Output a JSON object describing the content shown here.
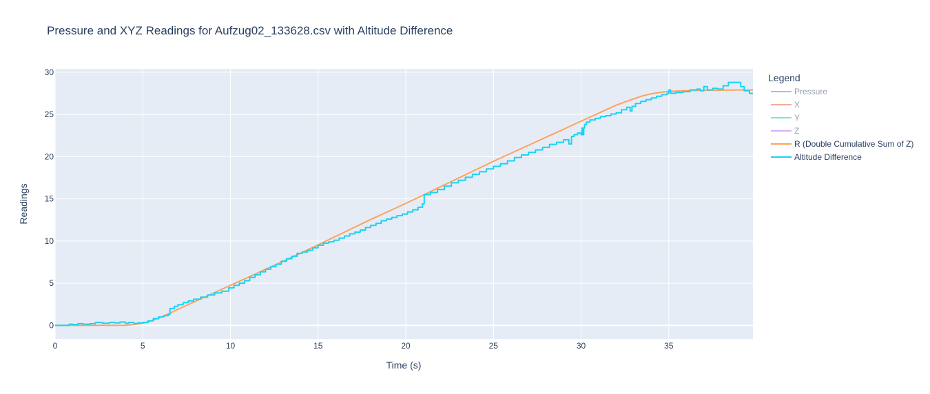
{
  "chart_data": {
    "type": "line",
    "title": "Pressure and XYZ Readings for Aufzug02_133628.csv with Altitude Difference",
    "xlabel": "Time (s)",
    "ylabel": "Readings",
    "xlim": [
      0,
      39.8
    ],
    "ylim": [
      -1.6,
      30.4
    ],
    "x_ticks": [
      0,
      5,
      10,
      15,
      20,
      25,
      30,
      35
    ],
    "y_ticks": [
      0,
      5,
      10,
      15,
      20,
      25,
      30
    ],
    "grid": true,
    "plot_background": "#e5ecf6",
    "legend": {
      "title": "Legend",
      "placement": "right"
    },
    "series": [
      {
        "name": "Pressure",
        "color": "#636efa",
        "visible": false,
        "x": [],
        "y": []
      },
      {
        "name": "X",
        "color": "#ef553b",
        "visible": false,
        "x": [],
        "y": []
      },
      {
        "name": "Y",
        "color": "#00cc96",
        "visible": false,
        "x": [],
        "y": []
      },
      {
        "name": "Z",
        "color": "#ab63fa",
        "visible": false,
        "x": [],
        "y": []
      },
      {
        "name": "R (Double Cumulative Sum of Z)",
        "color": "#ffa15a",
        "visible": true,
        "shape": "linear",
        "x": [
          0,
          2,
          4,
          4.5,
          5,
          5.5,
          6,
          6.5,
          7,
          8,
          9,
          10,
          11,
          12,
          13,
          14,
          15,
          16,
          17,
          18,
          19,
          20,
          21,
          22,
          23,
          24,
          25,
          26,
          27,
          28,
          29,
          30,
          31,
          32,
          33,
          33.5,
          34,
          34.5,
          35,
          35.5,
          36,
          37,
          38,
          39,
          39.8
        ],
        "y": [
          0,
          0,
          0.02,
          0.1,
          0.25,
          0.55,
          0.95,
          1.4,
          1.9,
          2.85,
          3.8,
          4.75,
          5.7,
          6.65,
          7.6,
          8.55,
          9.55,
          10.55,
          11.55,
          12.55,
          13.5,
          14.45,
          15.45,
          16.45,
          17.45,
          18.45,
          19.45,
          20.4,
          21.35,
          22.3,
          23.25,
          24.2,
          25.15,
          26.1,
          26.85,
          27.2,
          27.45,
          27.62,
          27.72,
          27.78,
          27.82,
          27.86,
          27.88,
          27.9,
          27.9
        ]
      },
      {
        "name": "Altitude Difference",
        "color": "#19d3f3",
        "visible": true,
        "shape": "hv",
        "x": [
          0,
          0.8,
          1,
          1.3,
          1.6,
          2,
          2.3,
          2.7,
          3.1,
          3.4,
          3.7,
          4,
          4.2,
          4.5,
          4.7,
          5,
          5.3,
          5.6,
          5.9,
          6.2,
          6.45,
          6.55,
          6.8,
          7,
          7.3,
          7.6,
          7.9,
          8.3,
          8.7,
          9.1,
          9.5,
          9.9,
          10.2,
          10.5,
          10.8,
          11.1,
          11.4,
          11.7,
          12,
          12.3,
          12.6,
          12.9,
          13.2,
          13.5,
          13.8,
          14.1,
          14.4,
          14.7,
          15,
          15.3,
          15.6,
          15.9,
          16.2,
          16.5,
          16.8,
          17.1,
          17.4,
          17.7,
          18,
          18.3,
          18.6,
          18.9,
          19.2,
          19.5,
          19.8,
          20.1,
          20.4,
          20.7,
          20.95,
          21.05,
          21.4,
          21.8,
          22.2,
          22.6,
          23,
          23.4,
          23.8,
          24.2,
          24.6,
          25,
          25.4,
          25.8,
          26.2,
          26.6,
          27,
          27.4,
          27.8,
          28.2,
          28.6,
          29,
          29.3,
          29.45,
          29.6,
          29.8,
          30,
          30.05,
          30.1,
          30.15,
          30.2,
          30.3,
          30.5,
          30.8,
          31.1,
          31.4,
          31.7,
          32,
          32.3,
          32.6,
          32.8,
          32.9,
          33.1,
          33.4,
          33.7,
          34,
          34.3,
          34.6,
          34.9,
          35,
          35.1,
          35.4,
          35.8,
          36.2,
          36.6,
          36.8,
          37,
          37.2,
          37.5,
          37.8,
          38.1,
          38.4,
          38.8,
          39.1,
          39.3,
          39.6,
          39.8
        ],
        "y": [
          0,
          0.15,
          0.1,
          0.2,
          0.15,
          0.2,
          0.35,
          0.25,
          0.35,
          0.3,
          0.4,
          0.25,
          0.35,
          0.2,
          0.3,
          0.35,
          0.55,
          0.8,
          1.0,
          1.15,
          1.3,
          2.0,
          2.25,
          2.45,
          2.7,
          2.9,
          3.1,
          3.35,
          3.6,
          3.85,
          4.05,
          4.45,
          4.75,
          5.0,
          5.3,
          5.7,
          6.0,
          6.35,
          6.65,
          6.95,
          7.25,
          7.6,
          7.9,
          8.2,
          8.55,
          8.7,
          8.9,
          9.2,
          9.5,
          9.75,
          9.9,
          10.1,
          10.35,
          10.6,
          10.85,
          11.05,
          11.3,
          11.6,
          11.85,
          12.1,
          12.4,
          12.6,
          12.8,
          13.0,
          13.2,
          13.45,
          13.7,
          14.0,
          14.4,
          15.5,
          15.75,
          16.1,
          16.5,
          16.9,
          17.2,
          17.55,
          17.9,
          18.2,
          18.55,
          18.85,
          19.15,
          19.5,
          19.9,
          20.2,
          20.5,
          20.8,
          21.1,
          21.45,
          21.7,
          22.0,
          21.5,
          22.4,
          22.6,
          22.8,
          22.6,
          23.4,
          22.6,
          23.4,
          23.8,
          24.1,
          24.35,
          24.55,
          24.75,
          24.85,
          25.05,
          25.2,
          25.55,
          25.85,
          25.4,
          25.95,
          26.3,
          26.55,
          26.75,
          26.95,
          27.15,
          27.35,
          27.5,
          27.9,
          27.5,
          27.6,
          27.7,
          27.9,
          28.0,
          27.8,
          28.3,
          27.9,
          28.1,
          28.0,
          28.4,
          28.8,
          28.8,
          28.3,
          27.8,
          27.5,
          27.5
        ]
      }
    ]
  }
}
